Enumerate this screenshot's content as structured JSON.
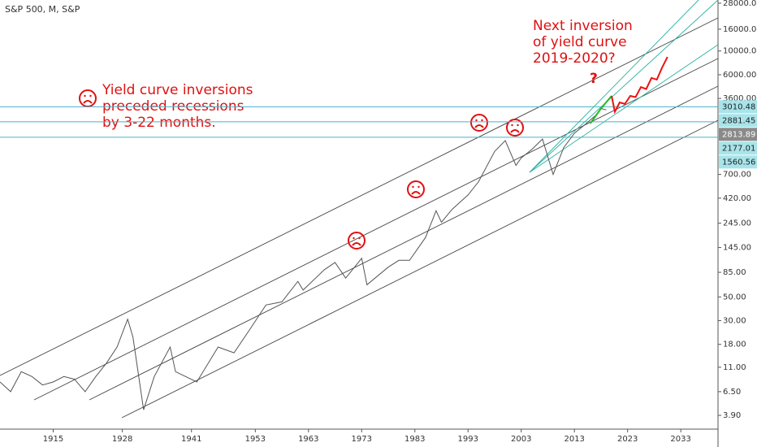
{
  "chart_data": {
    "type": "line",
    "title": "S&P 500, M, S&P",
    "log_scale": true,
    "xlim": [
      1905,
      2040
    ],
    "ylim": [
      2.9,
      30000
    ],
    "xticks": [
      1915,
      1928,
      1941,
      1953,
      1963,
      1973,
      1983,
      1993,
      2003,
      2013,
      2023,
      2033
    ],
    "yticks": [
      {
        "value": 3.9,
        "label": "3.90"
      },
      {
        "value": 6.5,
        "label": "6.50"
      },
      {
        "value": 11,
        "label": "11.00"
      },
      {
        "value": 18,
        "label": "18.00"
      },
      {
        "value": 30,
        "label": "30.00"
      },
      {
        "value": 50,
        "label": "50.00"
      },
      {
        "value": 85,
        "label": "85.00"
      },
      {
        "value": 145,
        "label": "145.00"
      },
      {
        "value": 245,
        "label": "245.00"
      },
      {
        "value": 420,
        "label": "420.00"
      },
      {
        "value": 700,
        "label": "700.00"
      },
      {
        "value": 3600,
        "label": "3600.00"
      },
      {
        "value": 6000,
        "label": "6000.00"
      },
      {
        "value": 10000,
        "label": "10000.00"
      },
      {
        "value": 16000,
        "label": "16000.00"
      },
      {
        "value": 28000,
        "label": "28000.00"
      }
    ],
    "series": [
      {
        "color": "#555555",
        "x": [
          1905,
          1907,
          1909,
          1911,
          1913,
          1915,
          1917,
          1919,
          1921,
          1923,
          1925,
          1927,
          1929,
          1930,
          1932,
          1934,
          1937,
          1938,
          1942,
          1946,
          1949,
          1952,
          1955,
          1958,
          1961,
          1962,
          1966,
          1968,
          1970,
          1973,
          1974,
          1978,
          1980,
          1982,
          1985,
          1987,
          1988,
          1990,
          1993,
          1995,
          1998,
          2000,
          2002,
          2003,
          2005,
          2007,
          2009,
          2011,
          2013,
          2015,
          2017,
          2018,
          2019
        ],
        "values": [
          8,
          6.5,
          10,
          9,
          7.5,
          8,
          9,
          8.5,
          6.5,
          9,
          12,
          17,
          31,
          21,
          4.4,
          9,
          17,
          10,
          8,
          17,
          15,
          25,
          42,
          45,
          70,
          58,
          90,
          105,
          75,
          115,
          65,
          95,
          110,
          110,
          180,
          320,
          250,
          330,
          450,
          600,
          1150,
          1450,
          850,
          1000,
          1200,
          1500,
          700,
          1250,
          1700,
          2050,
          2500,
          2900,
          2813.89
        ]
      },
      {
        "color": "#22bb22",
        "x": [
          2016,
          2018,
          2020
        ],
        "values": [
          2100,
          2900,
          3800
        ]
      },
      {
        "color": "#ee1111",
        "x": [
          2020,
          2020.6,
          2021.5,
          2022.5,
          2023.5,
          2024.5,
          2025.5,
          2026.5,
          2027.5,
          2028.5,
          2029.5,
          2030.5
        ],
        "values": [
          3800,
          2700,
          3300,
          3200,
          3800,
          3700,
          4600,
          4400,
          5600,
          5400,
          7000,
          8800
        ]
      }
    ],
    "price_lines": [
      3010.48,
      2177.01,
      1560.56
    ],
    "price_labels": [
      {
        "value": 3010.48,
        "label": "3010.48"
      },
      {
        "value": 2881.45,
        "label": "2881.45"
      },
      {
        "value": 2813.89,
        "label": "2813.89"
      },
      {
        "value": 2177.01,
        "label": "2177.01"
      },
      {
        "value": 1560.56,
        "label": "1560.56"
      }
    ],
    "annotations": [
      {
        "lines": [
          "Yield curve inversions",
          "preceded recessions",
          "by 3-22 months."
        ]
      },
      {
        "lines": [
          "Next inversion",
          "of yield curve",
          "2019-2020?"
        ]
      },
      {
        "lines": [
          "?"
        ]
      }
    ]
  }
}
